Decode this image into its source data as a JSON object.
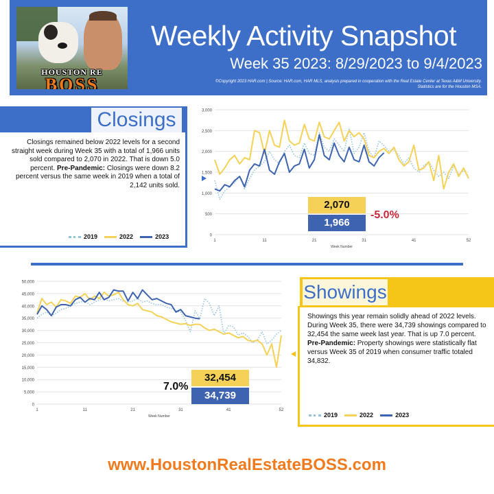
{
  "header": {
    "title": "Weekly Activity Snapshot",
    "subtitle": "Week 35 2023: 8/29/2023 to 9/4/2023",
    "copyright_line1": "©Copyright 2023 HAR.com  |  Source: HAR.com, HAR MLS, analysis prepared in cooperation with the Real Estate Center at Texas A&M University.",
    "copyright_line2": "Statistics are for the Houston MSA.",
    "logo_top": "HOUSTON RE",
    "logo_bottom": "BOSS"
  },
  "closings": {
    "heading": "Closings",
    "para1": "Closings remained below 2022 levels for a second straight week during Week 35 with a total of 1,966 units sold compared to 2,070 in 2022. That is down 5.0 percent.",
    "pre_label": "Pre-Pandemic:",
    "para2": " Closings were down 8.2 percent versus the same week in 2019 when a total of 2,142 units sold.",
    "callout_2022": "2,070",
    "callout_2023": "1,966",
    "change": "-5.0%"
  },
  "showings": {
    "heading": "Showings",
    "para1": "Showings this year remain solidly ahead of 2022 levels. During Week 35, there were 34,739 showings compared to 32,454 the same week last year. That is up 7.0 percent.",
    "pre_label": "Pre-Pandemic:",
    "para2": " Property showings were statistically flat versus Week 35 of 2019 when consumer traffic totaled 34,832.",
    "callout_2022": "32,454",
    "callout_2023": "34,739",
    "change": "7.0%"
  },
  "legend": {
    "s2019": "2019",
    "s2022": "2022",
    "s2023": "2023"
  },
  "url": "www.HoustonRealEstateBOSS.com",
  "colors": {
    "blue": "#3d6fc8",
    "series2019": "#93c3dc",
    "series2022": "#f5d257",
    "series2023": "#3e63b1",
    "orange": "#f07a1e"
  },
  "chart_data": [
    {
      "type": "line",
      "id": "closings",
      "xlabel": "Week Number",
      "xticks": [
        1,
        11,
        21,
        31,
        41,
        52
      ],
      "yticks": [
        0,
        500,
        1000,
        1500,
        2000,
        2500,
        3000
      ],
      "ylim": [
        0,
        3000
      ],
      "xlim": [
        1,
        52
      ],
      "series": [
        {
          "name": "2019",
          "x_start": 1,
          "values": [
            1300,
            850,
            1050,
            1150,
            1250,
            1400,
            1100,
            1350,
            1550,
            1650,
            1750,
            2000,
            1800,
            1700,
            2000,
            2150,
            1900,
            1850,
            2200,
            1950,
            1900,
            2450,
            2100,
            2000,
            2300,
            2150,
            2000,
            2550,
            1950,
            2100,
            2450,
            2000,
            1850,
            2250,
            2142,
            2000,
            2050,
            1900,
            1700,
            1850,
            1600,
            1500,
            1650,
            1750,
            1550,
            1400,
            1500,
            1350,
            1650,
            1450,
            1550,
            1400
          ]
        },
        {
          "name": "2022",
          "x_start": 1,
          "values": [
            1800,
            1450,
            1600,
            1800,
            1900,
            1700,
            1850,
            1800,
            2500,
            2450,
            1950,
            2500,
            2150,
            2100,
            2750,
            2250,
            2150,
            2200,
            2650,
            2300,
            2250,
            2700,
            2350,
            2300,
            2500,
            2700,
            2250,
            2500,
            2350,
            2450,
            2300,
            1900,
            1850,
            2000,
            2070,
            1950,
            2100,
            1800,
            1650,
            1750,
            2150,
            1550,
            1600,
            1750,
            1300,
            1900,
            1100,
            1500,
            1700,
            1400,
            1600,
            1350
          ]
        },
        {
          "name": "2023",
          "x_start": 1,
          "values": [
            1100,
            1050,
            1200,
            1150,
            1300,
            1400,
            1150,
            1550,
            1700,
            1650,
            2050,
            1550,
            1450,
            1750,
            1950,
            1500,
            1650,
            1700,
            2050,
            1600,
            1800,
            2400,
            1900,
            1800,
            2200,
            1900,
            1750,
            2100,
            1800,
            1750,
            2150,
            1750,
            1650,
            1850,
            1966
          ]
        }
      ]
    },
    {
      "type": "line",
      "id": "showings",
      "xlabel": "Week Number",
      "xticks": [
        1,
        11,
        21,
        31,
        41,
        52
      ],
      "yticks": [
        0,
        5000,
        10000,
        15000,
        20000,
        25000,
        30000,
        35000,
        40000,
        45000,
        50000
      ],
      "ylim": [
        0,
        50000
      ],
      "xlim": [
        1,
        52
      ],
      "series": [
        {
          "name": "2019",
          "x_start": 1,
          "values": [
            35000,
            36500,
            37500,
            36000,
            37000,
            38500,
            39000,
            40000,
            41000,
            41500,
            42000,
            40500,
            41500,
            42500,
            43000,
            42000,
            42500,
            43000,
            42000,
            41500,
            42000,
            43000,
            41500,
            42000,
            41000,
            40500,
            40500,
            39500,
            39000,
            38000,
            37500,
            34000,
            29500,
            38000,
            34832,
            43000,
            41000,
            36000,
            40000,
            28500,
            32000,
            31500,
            28000,
            29000,
            27500,
            25000,
            26000,
            29500,
            24500,
            26000,
            28500,
            30000
          ]
        },
        {
          "name": "2022",
          "x_start": 1,
          "values": [
            37000,
            43000,
            40500,
            41500,
            39500,
            42500,
            42000,
            41000,
            44000,
            43500,
            45000,
            42500,
            44000,
            43000,
            45500,
            44000,
            44500,
            45500,
            42500,
            40500,
            40000,
            41000,
            38500,
            38000,
            37500,
            36000,
            35500,
            34500,
            33500,
            33000,
            32500,
            32800,
            32000,
            32500,
            32454,
            31000,
            30000,
            30500,
            29500,
            28500,
            29000,
            28000,
            27000,
            27500,
            26000,
            25500,
            26000,
            24500,
            20000,
            24500,
            15000,
            28000
          ]
        },
        {
          "name": "2023",
          "x_start": 1,
          "values": [
            36500,
            40000,
            38500,
            36000,
            39500,
            40500,
            40500,
            40000,
            42500,
            43500,
            41500,
            43000,
            42500,
            45500,
            42500,
            43500,
            46500,
            46000,
            46000,
            42000,
            45500,
            43000,
            46500,
            44500,
            42500,
            43000,
            42000,
            41000,
            40500,
            37500,
            38500,
            36000,
            35500,
            35000,
            34739
          ]
        }
      ]
    }
  ]
}
